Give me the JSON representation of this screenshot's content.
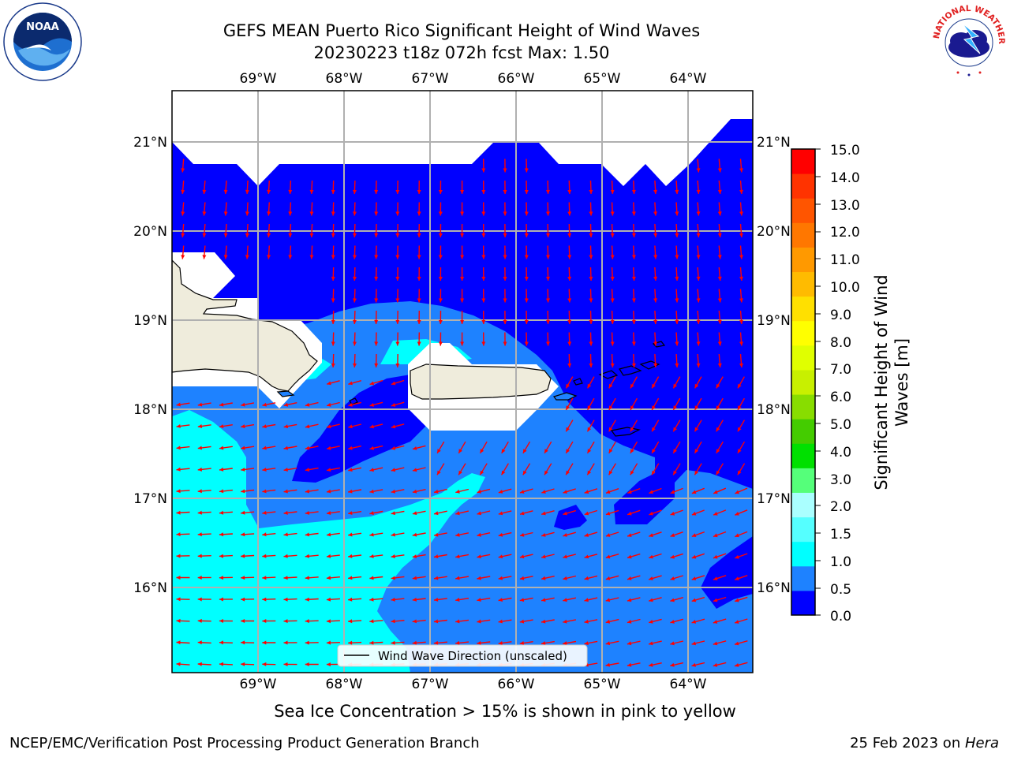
{
  "header": {
    "title_line1": "GEFS MEAN Puerto Rico Significant Height of Wind Waves",
    "title_line2": "20230223 t18z 072h fcst    Max: 1.50"
  },
  "logos": {
    "left": {
      "name": "noaa-logo",
      "text": "NOAA"
    },
    "right": {
      "name": "nws-logo",
      "text": "NATIONAL WEATHER SERVICE"
    }
  },
  "map": {
    "lon_labels": [
      "69°W",
      "68°W",
      "67°W",
      "66°W",
      "65°W",
      "64°W"
    ],
    "lat_labels": [
      "21°N",
      "20°N",
      "19°N",
      "18°N",
      "17°N",
      "16°N"
    ],
    "legend_label": "Wind Wave Direction (unscaled)",
    "arrow_color": "#ff0000",
    "colors": {
      "land": "#efecdc",
      "level_0_0.5": "#0000ff",
      "level_0.5_1.0": "#1e82ff",
      "level_1.0_1.5": "#00ffff"
    }
  },
  "colorbar": {
    "label_line1": "Significant Height of Wind",
    "label_line2": "Waves [m]",
    "ticks": [
      "15.0",
      "14.0",
      "13.0",
      "12.0",
      "11.0",
      "10.0",
      "9.0",
      "8.0",
      "7.0",
      "6.0",
      "5.0",
      "4.0",
      "3.0",
      "2.0",
      "1.5",
      "1.0",
      "0.5",
      "0.0"
    ],
    "colors": [
      "#0000ff",
      "#1e82ff",
      "#00ffff",
      "#55ffff",
      "#aaffff",
      "#55ff7a",
      "#00e000",
      "#44cc00",
      "#88dd00",
      "#c8f000",
      "#e0ff00",
      "#ffff00",
      "#ffe000",
      "#ffbb00",
      "#ff9900",
      "#ff7700",
      "#ff5500",
      "#ff3300",
      "#ff0000"
    ]
  },
  "footer": {
    "subtitle": "Sea Ice Concentration > 15% is shown in pink to yellow",
    "left": "NCEP/EMC/Verification Post Processing Product Generation Branch",
    "right_date": "25 Feb 2023 on ",
    "right_host": "Hera"
  }
}
